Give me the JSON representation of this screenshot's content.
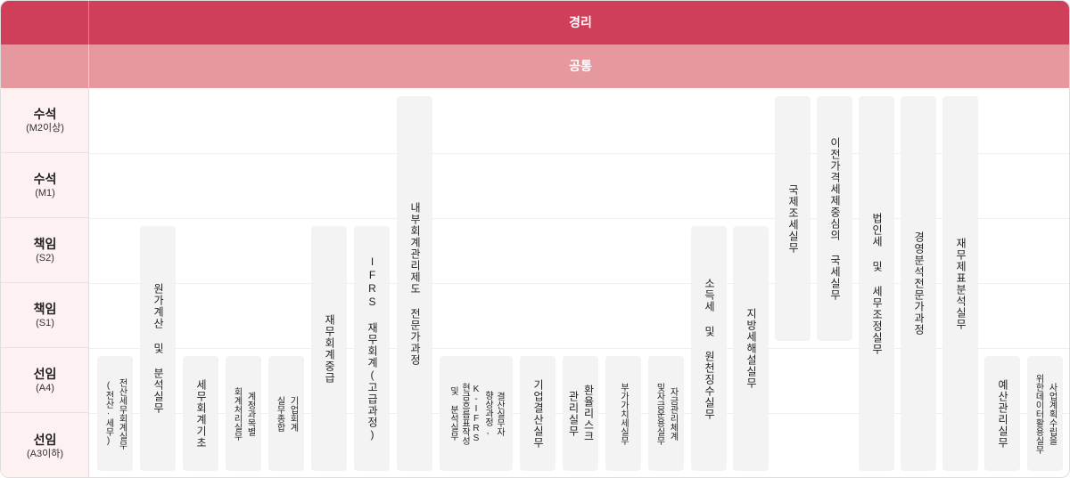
{
  "header": {
    "top_title": "경리",
    "sub_title": "공통"
  },
  "ranks": [
    {
      "main": "수석",
      "sub": "(M2이상)"
    },
    {
      "main": "수석",
      "sub": "(M1)"
    },
    {
      "main": "책임",
      "sub": "(S2)"
    },
    {
      "main": "책임",
      "sub": "(S1)"
    },
    {
      "main": "선임",
      "sub": "(A4)"
    },
    {
      "main": "선임",
      "sub": "(A3이하)"
    }
  ],
  "courses": [
    {
      "name": "전산세무회계실무",
      "lines": [
        "전산세무회계실무",
        "(전산·세무)"
      ]
    },
    {
      "name": "원가계산 및 분석실무",
      "lines": [
        "원가계산 및 분석실무"
      ]
    },
    {
      "name": "세무회계기초",
      "lines": [
        "세무회계기초"
      ]
    },
    {
      "name": "계정과목별 회계처리실무",
      "lines": [
        "계정과목별",
        "회계처리실무"
      ]
    },
    {
      "name": "기업회계 실무종합",
      "lines": [
        "기업회계",
        "실무종합"
      ]
    },
    {
      "name": "재무회계중급",
      "lines": [
        "재무회계중급"
      ]
    },
    {
      "name": "IFRS 재무회계(고급과정)",
      "lines": [
        "IFRS 재무회계(고급과정)"
      ]
    },
    {
      "name": "내부회계관리제도 전문가과정",
      "lines": [
        "내부회계관리제도 전문가과정"
      ]
    },
    {
      "name": "결산실무자 향상과정, K-IFRS 현금흐름표 작성 및 분석실무",
      "lines": [
        "결산실무자",
        "향상과정,",
        "K-IFRS",
        "현금흐름표작성",
        "및 분석실무"
      ]
    },
    {
      "name": "기업결산실무",
      "lines": [
        "기업결산실무"
      ]
    },
    {
      "name": "환율리스크 관리실무",
      "lines": [
        "환율리스크",
        "관리실무"
      ]
    },
    {
      "name": "부가가치세실무",
      "lines": [
        "부가가치세실무"
      ]
    },
    {
      "name": "자금관리체계 및 자금운용실무",
      "lines": [
        "자금관리체계",
        "및자금운용실무"
      ]
    },
    {
      "name": "소득세 및 원천징수실무",
      "lines": [
        "소득세 및 원천징수실무"
      ]
    },
    {
      "name": "지방세해설실무",
      "lines": [
        "지방세해설실무"
      ]
    },
    {
      "name": "국제조세실무",
      "lines": [
        "국제조세실무"
      ]
    },
    {
      "name": "이전가격세제중심의 국세실무",
      "lines": [
        "이전가격세제중심의 국세실무"
      ]
    },
    {
      "name": "법인세 및 세무조정실무",
      "lines": [
        "법인세 및 세무조정실무"
      ]
    },
    {
      "name": "경영분석전문가과정",
      "lines": [
        "경영분석전문가과정"
      ]
    },
    {
      "name": "재무제표분석실무",
      "lines": [
        "재무제표분석실무"
      ]
    },
    {
      "name": "예산관리실무",
      "lines": [
        "예산관리실무"
      ]
    },
    {
      "name": "사업계획수립을 위한데이터활용실무",
      "lines": [
        "사업계획수립을",
        "위한데이터활용실무"
      ]
    }
  ]
}
